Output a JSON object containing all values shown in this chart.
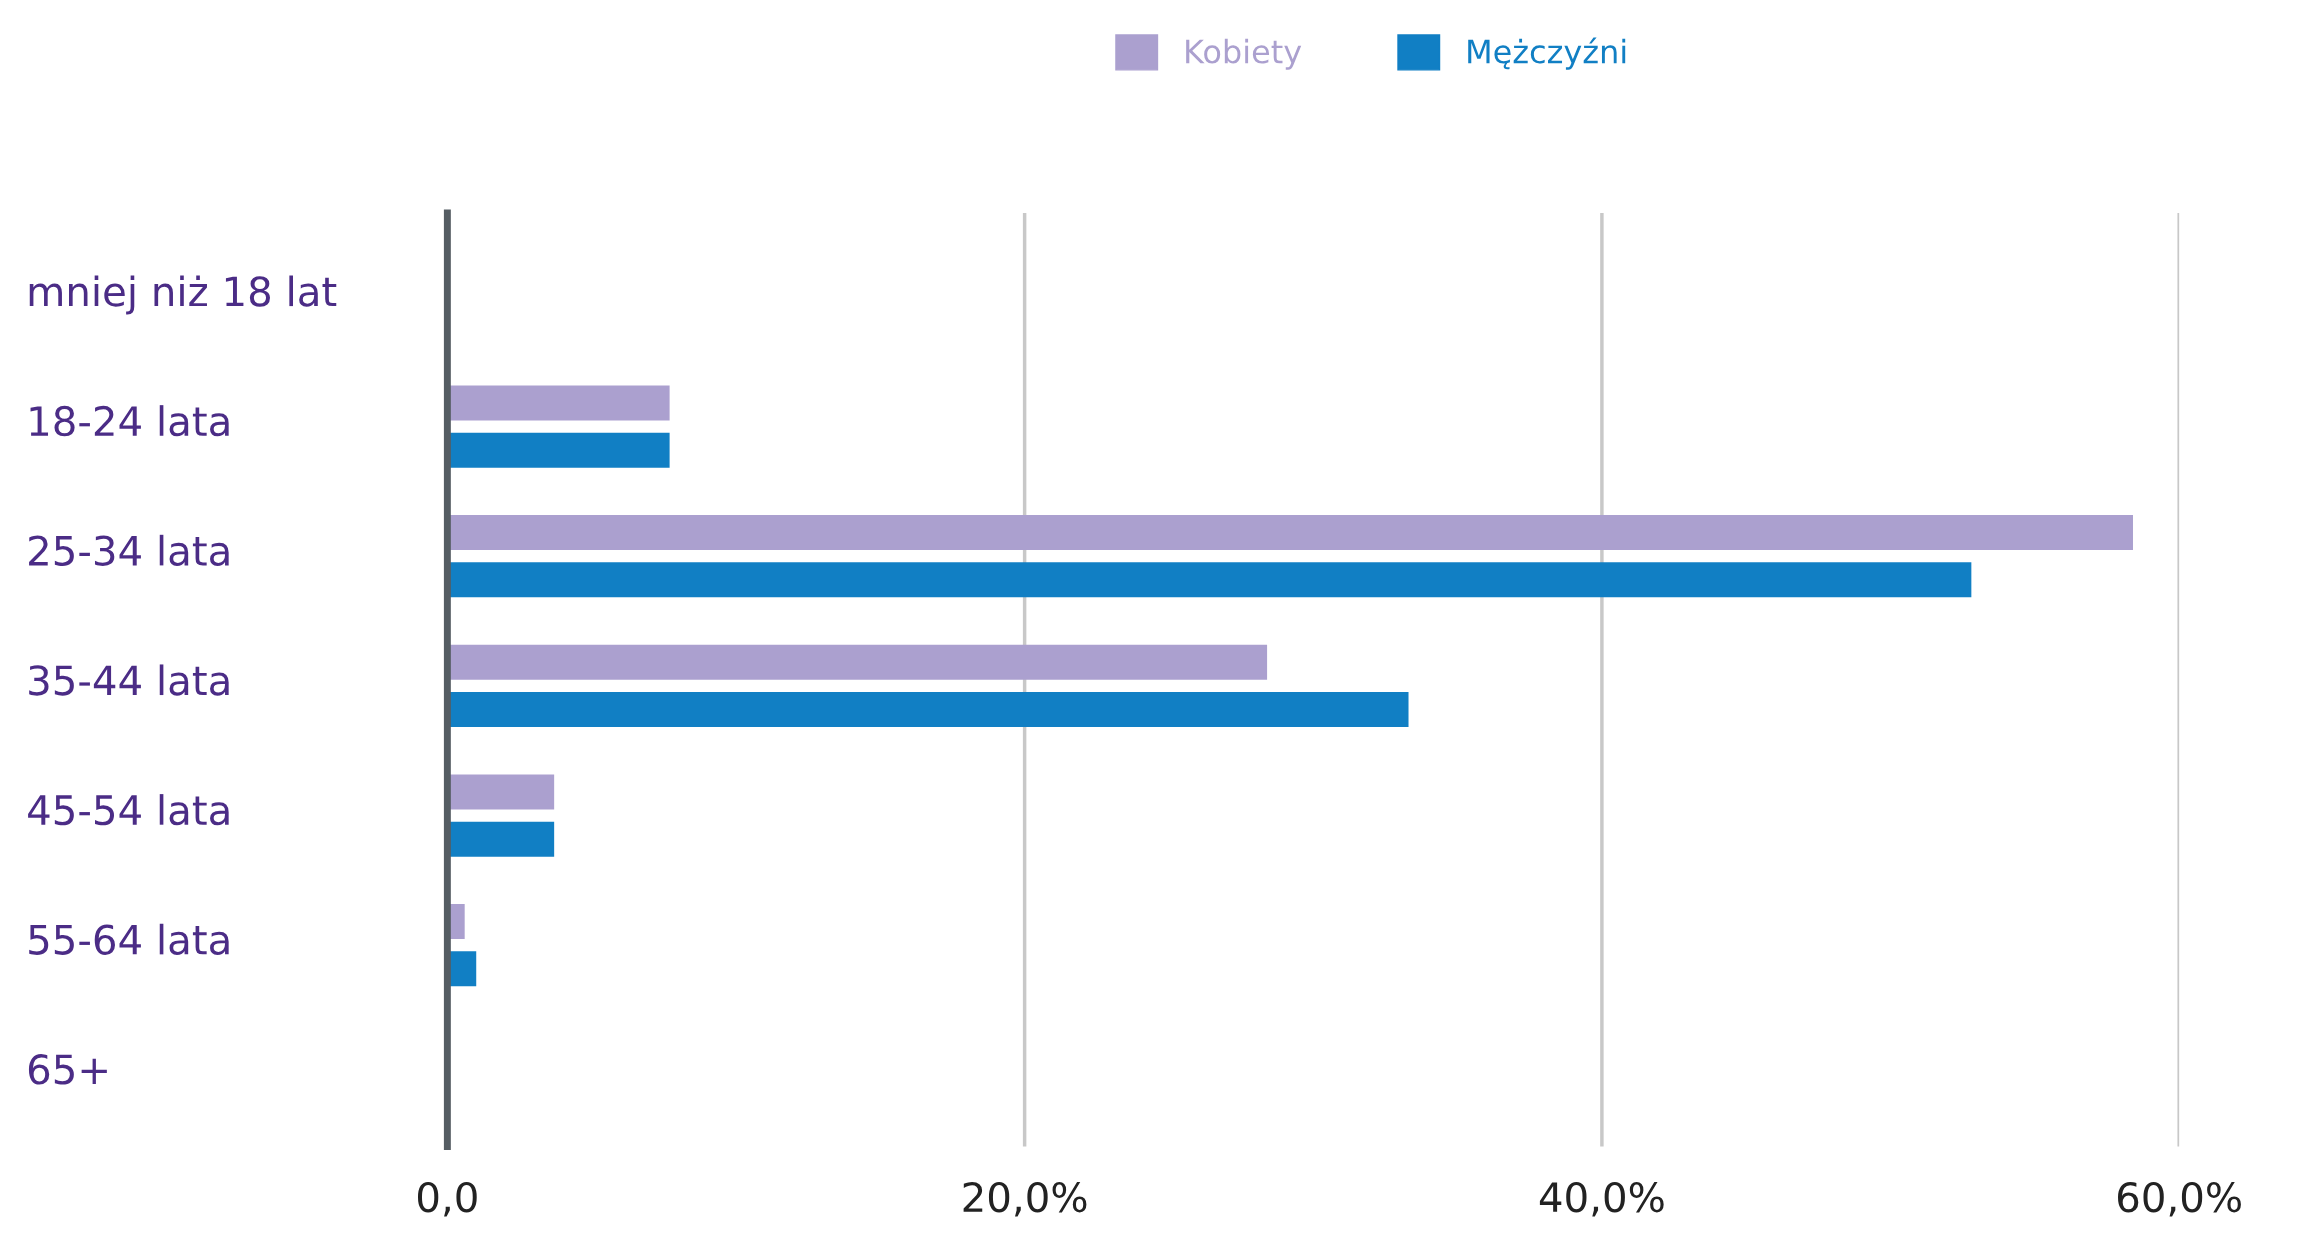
{
  "chart_data": {
    "type": "bar",
    "orientation": "horizontal",
    "categories": [
      "mniej niż 18 lat",
      "18-24 lata",
      "25-34 lata",
      "35-44 lata",
      "45-54 lata",
      "55-64 lata",
      "65+"
    ],
    "series": [
      {
        "name": "Kobiety",
        "color": "#aba0cf",
        "values": [
          0,
          7.7,
          58.4,
          28.4,
          3.7,
          0.6,
          0
        ]
      },
      {
        "name": "Mężczyźni",
        "color": "#117fc4",
        "values": [
          0,
          7.7,
          52.8,
          33.3,
          3.7,
          1.0,
          0
        ]
      }
    ],
    "xlim": [
      0,
      60
    ],
    "xticks": [
      {
        "value": 0,
        "label": "0,0"
      },
      {
        "value": 20,
        "label": "20,0%"
      },
      {
        "value": 40,
        "label": "40,0%"
      },
      {
        "value": 60,
        "label": "60,0%"
      }
    ],
    "grid": "x",
    "legend": "top"
  }
}
